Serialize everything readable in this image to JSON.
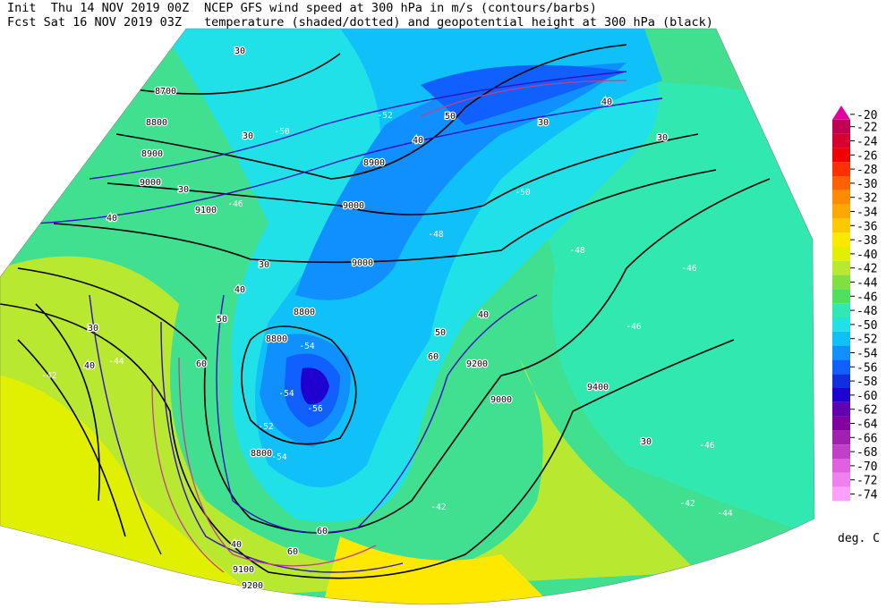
{
  "header": {
    "init": "Init  Thu 14 NOV 2019 00Z",
    "fcst": "Fcst Sat 16 NOV 2019 03Z",
    "title_line1": "NCEP GFS wind speed at 300 hPa in m/s (contours/barbs)",
    "title_line2": "temperature (shaded/dotted) and geopotential height at 300 hPa (black)"
  },
  "legend": {
    "levels": [
      -20,
      -22,
      -24,
      -26,
      -28,
      -30,
      -32,
      -34,
      -36,
      -38,
      -40,
      -42,
      -44,
      -46,
      -48,
      -50,
      -52,
      -54,
      -56,
      -58,
      -60,
      -62,
      -64,
      -66,
      -68,
      -70,
      -72,
      -74
    ],
    "colors": [
      "#e000a0",
      "#c00050",
      "#d80030",
      "#f00000",
      "#ff3000",
      "#ff6000",
      "#ff8c00",
      "#ffa800",
      "#ffc800",
      "#ffe800",
      "#e0f000",
      "#b8e830",
      "#80e040",
      "#50e060",
      "#30e8b0",
      "#20e0e8",
      "#10c0f8",
      "#1090ff",
      "#1060ff",
      "#1030e0",
      "#2000d0",
      "#6000b0",
      "#8000a0",
      "#a020b0",
      "#c040c8",
      "#e060e0",
      "#f080f0",
      "#ffa0ff"
    ],
    "unit": "deg. C"
  },
  "map": {
    "labels": [
      "30",
      "8700",
      "8800",
      "30",
      "8900",
      "9000",
      "30",
      "9100",
      "40",
      "8900",
      "9000",
      "9000",
      "8800",
      "8800",
      "8800",
      "9200",
      "9400",
      "9000",
      "9100",
      "9200",
      "30",
      "40",
      "50",
      "60",
      "40",
      "30",
      "50",
      "40",
      "30",
      "40",
      "30",
      "40",
      "50",
      "60",
      "60",
      "60",
      "40",
      "30",
      "-42",
      "-44",
      "-46",
      "-48",
      "-50",
      "-52",
      "-50",
      "-48",
      "-46",
      "-46",
      "-46",
      "-44",
      "-42",
      "-54",
      "-54",
      "-56",
      "-52",
      "-54",
      "-42"
    ]
  }
}
